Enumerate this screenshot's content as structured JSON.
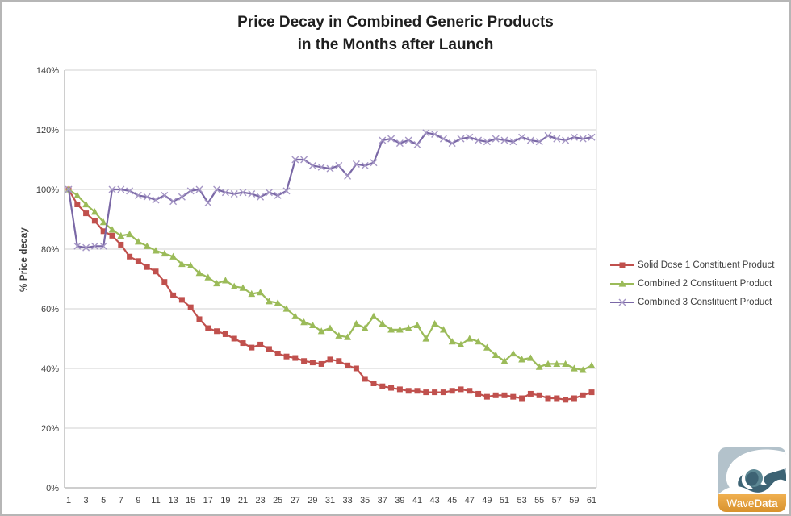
{
  "title": {
    "line1": "Price Decay in Combined Generic Products",
    "line2": "in the Months after Launch"
  },
  "chart_data": {
    "type": "line",
    "title": "Price Decay in Combined Generic Products in the Months after Launch",
    "xlabel": "",
    "ylabel": "% Price decay",
    "ylim": [
      0,
      140
    ],
    "ytick_step": 20,
    "ytick_suffix": "%",
    "grid": true,
    "legend_position": "right",
    "x_months": "1 to 61",
    "xticks": [
      1,
      3,
      5,
      7,
      9,
      11,
      13,
      15,
      17,
      19,
      21,
      23,
      25,
      27,
      29,
      31,
      33,
      35,
      37,
      39,
      41,
      43,
      45,
      47,
      49,
      51,
      53,
      55,
      57,
      59,
      61
    ],
    "series": [
      {
        "name": "Solid Dose 1 Constituent Product",
        "marker": "square",
        "color": "#c0504d",
        "values": [
          100,
          95,
          92,
          89.5,
          86,
          84.5,
          81.5,
          77.5,
          76,
          74,
          72.5,
          69,
          64.5,
          63,
          60.5,
          56.5,
          53.5,
          52.5,
          51.5,
          50,
          48.5,
          47,
          48,
          46.5,
          45,
          44,
          43.5,
          42.5,
          42,
          41.5,
          43,
          42.5,
          41,
          40,
          36.5,
          35,
          34,
          33.5,
          33,
          32.5,
          32.5,
          32,
          32,
          32,
          32.5,
          33,
          32.5,
          31.5,
          30.5,
          31,
          31,
          30.5,
          30,
          31.5,
          31,
          30,
          30,
          29.5,
          30,
          31,
          32
        ]
      },
      {
        "name": "Combined 2 Constituent Product",
        "marker": "triangle",
        "color": "#9bbb59",
        "values": [
          100,
          98,
          95,
          92.5,
          89,
          86.5,
          84.5,
          85,
          82.5,
          81,
          79.5,
          78.5,
          77.5,
          75,
          74.5,
          72,
          70.5,
          68.5,
          69.5,
          67.5,
          67,
          65,
          65.5,
          62.5,
          62,
          60,
          57.5,
          55.5,
          54.5,
          52.5,
          53.5,
          51,
          50.5,
          55,
          53.5,
          57.5,
          55,
          53,
          53,
          53.5,
          54.5,
          50,
          55,
          53,
          49,
          48,
          50,
          49,
          47,
          44.5,
          42.5,
          45,
          43,
          43.5,
          40.5,
          41.5,
          41.5,
          41.5,
          40,
          39.5,
          41
        ]
      },
      {
        "name": "Combined 3 Constituent Product",
        "marker": "x",
        "color": "#7a68a6",
        "marker_color": "#a596c5",
        "values": [
          100,
          81,
          80.5,
          81,
          81,
          100,
          100,
          99.5,
          98,
          97.5,
          96.5,
          98,
          96,
          97.5,
          99.5,
          100,
          95.5,
          100,
          99,
          98.5,
          99,
          98.5,
          97.5,
          99,
          98,
          99.5,
          110,
          110,
          108,
          107.5,
          107,
          108,
          104.5,
          108.5,
          108,
          109,
          116.5,
          117,
          115.5,
          116.5,
          115,
          119,
          118.5,
          117,
          115.5,
          117,
          117.5,
          116.5,
          116,
          117,
          116.5,
          116,
          117.5,
          116.5,
          116,
          118,
          117,
          116.5,
          117.5,
          117,
          117.5
        ]
      }
    ]
  },
  "logo": {
    "brand_light": "Wave",
    "brand_bold": "Data",
    "band_color": "#e8a33d",
    "sky_color": "#b3c2cb",
    "water_color": "#3d6374",
    "foam_color": "#ffffff"
  }
}
